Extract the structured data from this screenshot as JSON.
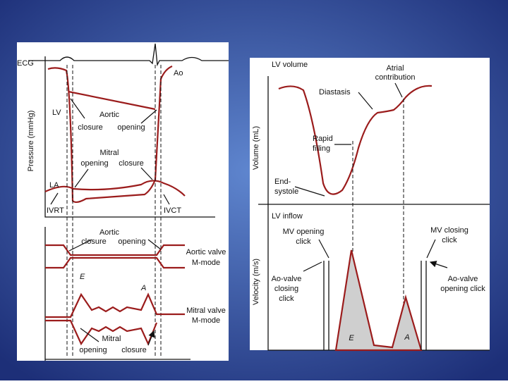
{
  "left_panel": {
    "ecg": "ECG",
    "ao": "Ao",
    "lv": "LV",
    "la": "LA",
    "y_axis": "Pressure (mmHg)",
    "aortic_pressure": {
      "title": "Aortic",
      "closure": "closure",
      "opening": "opening"
    },
    "mitral_pressure": {
      "title": "Mitral",
      "opening": "opening",
      "closure": "closure"
    },
    "ivrt": "IVRT",
    "ivct": "IVCT",
    "aortic_mmode": {
      "title": "Aortic",
      "closure": "closure",
      "opening": "opening",
      "label": [
        "Aortic valve",
        "M-mode"
      ]
    },
    "mitral_mmode": {
      "e": "E",
      "a": "A",
      "label": [
        "Mitral valve",
        "M-mode"
      ],
      "title": "Mitral",
      "opening": "opening",
      "closure": "closure"
    }
  },
  "right_panel": {
    "volume_title": "LV volume",
    "atrial": [
      "Atrial",
      "contribution"
    ],
    "diastasis": "Diastasis",
    "y_axis_volume": "Volume (mL)",
    "rapid": [
      "Rapid",
      "filling"
    ],
    "end_systole": [
      "End-",
      "systole"
    ],
    "inflow_title": "LV inflow",
    "mv_opening": [
      "MV opening",
      "click"
    ],
    "mv_closing": [
      "MV closing",
      "click"
    ],
    "y_axis_velocity": "Velocity (m/s)",
    "ao_closing": [
      "Ao-valve",
      "closing",
      "click"
    ],
    "ao_opening": [
      "Ao-valve",
      "opening click"
    ],
    "e": "E",
    "a": "A"
  }
}
